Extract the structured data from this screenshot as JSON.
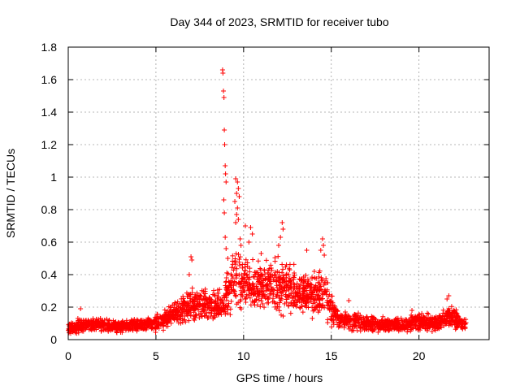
{
  "chart_data": {
    "type": "scatter",
    "title": "Day 344 of 2023, SRMTID for receiver tubo",
    "xlabel": "GPS time / hours",
    "ylabel": "SRMTID / TECUs",
    "xlim": [
      0,
      24
    ],
    "ylim": [
      0,
      1.8
    ],
    "xticks": [
      "0",
      "5",
      "10",
      "15",
      "20"
    ],
    "yticks": [
      "0",
      "0.2",
      "0.4",
      "0.6",
      "0.8",
      "1",
      "1.2",
      "1.4",
      "1.6",
      "1.8"
    ],
    "xtick_values": [
      0,
      5,
      10,
      15,
      20
    ],
    "ytick_values": [
      0,
      0.2,
      0.4,
      0.6,
      0.8,
      1.0,
      1.2,
      1.4,
      1.6,
      1.8
    ],
    "grid": true,
    "marker": "+",
    "color": "#ff0000",
    "x_range_data": [
      0,
      22.7
    ],
    "envelope": [
      {
        "x": 0.0,
        "base": 0.07,
        "spread": 0.05
      },
      {
        "x": 1.0,
        "base": 0.09,
        "spread": 0.07
      },
      {
        "x": 2.0,
        "base": 0.09,
        "spread": 0.05
      },
      {
        "x": 3.0,
        "base": 0.08,
        "spread": 0.05
      },
      {
        "x": 4.0,
        "base": 0.09,
        "spread": 0.05
      },
      {
        "x": 5.0,
        "base": 0.1,
        "spread": 0.07
      },
      {
        "x": 6.0,
        "base": 0.15,
        "spread": 0.09
      },
      {
        "x": 7.0,
        "base": 0.22,
        "spread": 0.14
      },
      {
        "x": 8.0,
        "base": 0.2,
        "spread": 0.12
      },
      {
        "x": 8.8,
        "base": 0.22,
        "spread": 0.15
      },
      {
        "x": 9.5,
        "base": 0.38,
        "spread": 0.25
      },
      {
        "x": 10.5,
        "base": 0.32,
        "spread": 0.2
      },
      {
        "x": 11.5,
        "base": 0.33,
        "spread": 0.2
      },
      {
        "x": 12.5,
        "base": 0.33,
        "spread": 0.22
      },
      {
        "x": 13.5,
        "base": 0.28,
        "spread": 0.15
      },
      {
        "x": 14.5,
        "base": 0.28,
        "spread": 0.2
      },
      {
        "x": 15.5,
        "base": 0.12,
        "spread": 0.08
      },
      {
        "x": 17.0,
        "base": 0.1,
        "spread": 0.07
      },
      {
        "x": 19.0,
        "base": 0.09,
        "spread": 0.05
      },
      {
        "x": 20.0,
        "base": 0.11,
        "spread": 0.07
      },
      {
        "x": 21.0,
        "base": 0.1,
        "spread": 0.07
      },
      {
        "x": 21.7,
        "base": 0.14,
        "spread": 0.1
      },
      {
        "x": 22.7,
        "base": 0.09,
        "spread": 0.05
      }
    ],
    "highlights": [
      {
        "x": 8.8,
        "y": 1.66
      },
      {
        "x": 8.82,
        "y": 1.64
      },
      {
        "x": 8.85,
        "y": 1.53
      },
      {
        "x": 8.88,
        "y": 1.49
      },
      {
        "x": 8.9,
        "y": 1.29
      },
      {
        "x": 8.92,
        "y": 1.2
      },
      {
        "x": 8.95,
        "y": 1.07
      },
      {
        "x": 8.97,
        "y": 1.02
      },
      {
        "x": 9.0,
        "y": 0.97
      },
      {
        "x": 8.87,
        "y": 0.86
      },
      {
        "x": 8.9,
        "y": 0.78
      },
      {
        "x": 8.95,
        "y": 0.63
      },
      {
        "x": 9.0,
        "y": 0.56
      },
      {
        "x": 9.1,
        "y": 0.5
      },
      {
        "x": 9.55,
        "y": 0.99
      },
      {
        "x": 9.65,
        "y": 0.97
      },
      {
        "x": 9.7,
        "y": 0.93
      },
      {
        "x": 9.6,
        "y": 0.9
      },
      {
        "x": 9.75,
        "y": 0.88
      },
      {
        "x": 9.5,
        "y": 0.85
      },
      {
        "x": 9.65,
        "y": 0.81
      },
      {
        "x": 9.6,
        "y": 0.77
      },
      {
        "x": 9.7,
        "y": 0.74
      },
      {
        "x": 9.55,
        "y": 0.72
      },
      {
        "x": 9.8,
        "y": 0.62
      },
      {
        "x": 9.85,
        "y": 0.58
      },
      {
        "x": 10.4,
        "y": 0.69
      },
      {
        "x": 10.5,
        "y": 0.65
      },
      {
        "x": 10.3,
        "y": 0.6
      },
      {
        "x": 12.2,
        "y": 0.72
      },
      {
        "x": 12.25,
        "y": 0.68
      },
      {
        "x": 12.1,
        "y": 0.63
      },
      {
        "x": 12.0,
        "y": 0.58
      },
      {
        "x": 14.5,
        "y": 0.62
      },
      {
        "x": 14.55,
        "y": 0.58
      },
      {
        "x": 14.4,
        "y": 0.55
      },
      {
        "x": 14.6,
        "y": 0.52
      },
      {
        "x": 7.0,
        "y": 0.51
      },
      {
        "x": 7.05,
        "y": 0.49
      },
      {
        "x": 6.9,
        "y": 0.4
      },
      {
        "x": 13.6,
        "y": 0.55
      },
      {
        "x": 11.0,
        "y": 0.53
      },
      {
        "x": 10.1,
        "y": 0.7
      },
      {
        "x": 21.6,
        "y": 0.25
      },
      {
        "x": 21.7,
        "y": 0.27
      },
      {
        "x": 0.7,
        "y": 0.19
      },
      {
        "x": 16.0,
        "y": 0.24
      },
      {
        "x": 19.6,
        "y": 0.18
      }
    ]
  }
}
